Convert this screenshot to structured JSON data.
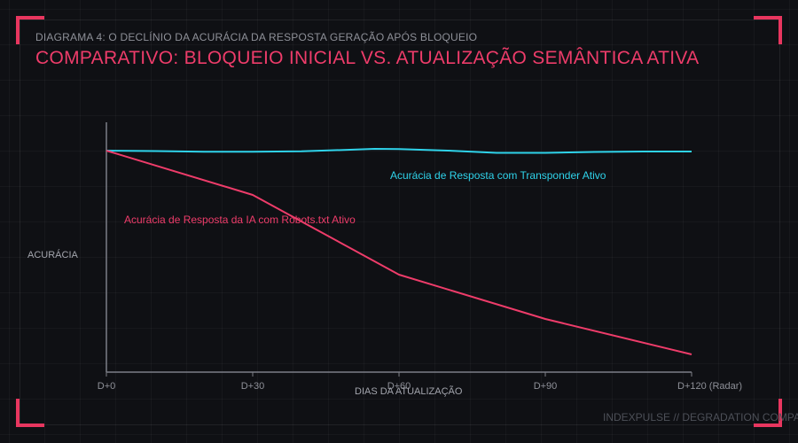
{
  "header": {
    "subtitle": "DIAGRAMA 4: O DECLÍNIO DA ACURÁCIA DA RESPOSTA GERAÇÃO APÓS BLOQUEIO",
    "title": "COMPARATIVO: BLOQUEIO INICIAL VS. ATUALIZAÇÃO SEMÂNTICA ATIVA"
  },
  "footer": {
    "text": "INDEXPULSE // DEGRADATION COMPA"
  },
  "colors": {
    "accent": "#e8365f",
    "title": "#ee3c6a",
    "transponder": "#2fd3ea",
    "robots": "#ee3c6a"
  },
  "chart_data": {
    "type": "line",
    "xlabel": "DIAS DA ATUALIZAÇÃO",
    "ylabel": "ACURÁCIA",
    "x": [
      0,
      30,
      60,
      90,
      120
    ],
    "tick_labels": [
      "D+0",
      "D+30",
      "D+60",
      "D+90",
      "D+120 (Radar)"
    ],
    "xlim": [
      0,
      120
    ],
    "ylim": [
      0,
      100
    ],
    "grid": false,
    "series": [
      {
        "name": "Acurácia de Resposta com Transponder Ativo",
        "color": "#2fd3ea",
        "x": [
          0,
          10,
          20,
          30,
          40,
          50,
          55,
          60,
          70,
          80,
          90,
          100,
          110,
          120
        ],
        "values": [
          100,
          99.8,
          99.5,
          99.5,
          99.7,
          100.4,
          100.8,
          100.7,
          100,
          99,
          99,
          99.4,
          99.6,
          99.6
        ]
      },
      {
        "name": "Acurácia de Resposta da IA com Robots.txt Ativo",
        "color": "#ee3c6a",
        "x": [
          0,
          30,
          60,
          90,
          120
        ],
        "values": [
          100,
          80,
          44,
          24,
          8
        ]
      }
    ]
  }
}
